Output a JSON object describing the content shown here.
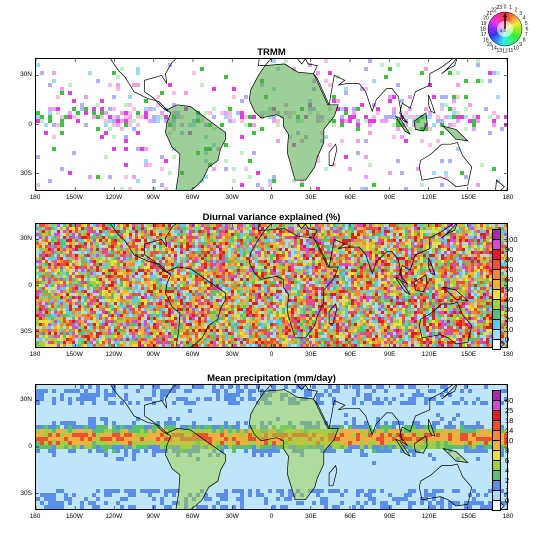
{
  "panels": [
    {
      "id": "trmm",
      "title": "TRMM",
      "type": "phase",
      "colorbar": null
    },
    {
      "id": "variance",
      "title": "Diurnal variance explained (%)",
      "type": "variance",
      "colorbar": {
        "labels": [
          "100",
          "90",
          "80",
          "70",
          "60",
          "50",
          "40",
          "30",
          "20",
          "10",
          "0"
        ],
        "colors": [
          "#a82aa8",
          "#d04cd0",
          "#e02020",
          "#f05030",
          "#f08838",
          "#f0b040",
          "#e8e040",
          "#a0d040",
          "#58c070",
          "#60c8e8",
          "#a8d8f8",
          "#ffffff"
        ]
      }
    },
    {
      "id": "precip",
      "title": "Mean precipitation (mm/day)",
      "type": "precip",
      "colorbar": {
        "labels": [
          "40",
          "25",
          "18",
          "14",
          "10",
          "8",
          "6",
          "4",
          "2",
          "1",
          "0"
        ],
        "colors": [
          "#a82aa8",
          "#d04cd0",
          "#e02020",
          "#f05030",
          "#f08838",
          "#f0b040",
          "#e8e040",
          "#a0d040",
          "#58c070",
          "#5a8ee8",
          "#a8d8f8",
          "#ffffff"
        ]
      }
    }
  ],
  "axes": {
    "x_ticks": [
      "180",
      "150W",
      "120W",
      "90W",
      "60W",
      "30W",
      "0",
      "30E",
      "60E",
      "90E",
      "120E",
      "150E",
      "180"
    ],
    "y_ticks": [
      "30N",
      "0",
      "30S"
    ]
  },
  "phase_wheel": {
    "hours": [
      "0",
      "1",
      "2",
      "3",
      "4",
      "5",
      "6",
      "7",
      "8",
      "9",
      "10",
      "11",
      "12",
      "13",
      "14",
      "15",
      "16",
      "17",
      "18",
      "19",
      "20",
      "21",
      "22",
      "23"
    ],
    "center_label": "0.3"
  },
  "colors": {
    "ocean_light": "#bfe6f8",
    "land_precip": "#8cc84c",
    "coastline": "#000000"
  }
}
